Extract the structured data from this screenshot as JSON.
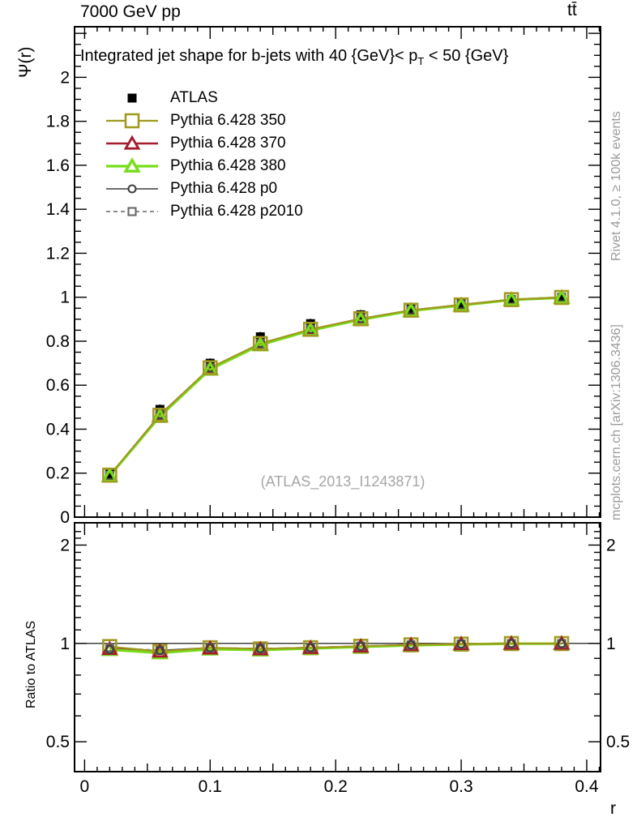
{
  "header": {
    "left": "7000 GeV pp",
    "right": "tt̄"
  },
  "panel_title": {
    "pre": "Integrated jet shape for b-jets with 40 {GeV}< p",
    "sub": "T",
    "post": " < 50 {GeV}"
  },
  "side_notes": {
    "top_right": "Rivet 4.1.0, ≥ 100k events",
    "bottom_right": "mcplots.cern.ch [arXiv:1306.3436]",
    "color": "#9b9b9b"
  },
  "watermark": {
    "text": "(ATLAS_2013_I1243871)",
    "color": "#a6a6a6"
  },
  "chart_data": {
    "type": "line",
    "title": "Integrated jet shape for b-jets with 40 {GeV}< p_T < 50 {GeV}",
    "xlabel": "r",
    "ylabel": "Ψ(r)",
    "ratio_ylabel": "Ratio to ATLAS",
    "x": [
      0.02,
      0.06,
      0.1,
      0.14,
      0.18,
      0.22,
      0.26,
      0.3,
      0.34,
      0.38
    ],
    "xlim": [
      -0.008,
      0.411
    ],
    "xticks": {
      "values": [
        0,
        0.1,
        0.2,
        0.3,
        0.4
      ],
      "labels": [
        "0",
        "0.1",
        "0.2",
        "0.3",
        "0.4"
      ]
    },
    "top_panel": {
      "ylim": [
        0,
        2.23
      ],
      "yticks": {
        "values": [
          0,
          0.2,
          0.4,
          0.6,
          0.8,
          1,
          1.2,
          1.4,
          1.6,
          1.8,
          2
        ],
        "labels": [
          "0",
          "0.2",
          "0.4",
          "0.6",
          "0.8",
          "1",
          "1.2",
          "1.4",
          "1.6",
          "1.8",
          "2"
        ]
      },
      "minor_step": 0.05
    },
    "ratio_panel": {
      "yscale": "log",
      "ylim": [
        0.405,
        2.34
      ],
      "yticks": {
        "values": [
          0.5,
          1,
          2
        ],
        "labels": [
          "0.5",
          "1",
          "2"
        ]
      },
      "minor_ticks": [
        0.6,
        0.7,
        0.8,
        0.9,
        1.1,
        1.2,
        1.3,
        1.4,
        1.5,
        1.6,
        1.7,
        1.8,
        1.9,
        2.1,
        2.2
      ],
      "refline": 1
    },
    "series": [
      {
        "name": "ATLAS",
        "kind": "data",
        "color": "#000000",
        "marker": "square-filled",
        "marker_size": 5.5,
        "line_width": 0,
        "line_style": "none",
        "values": [
          0.195,
          0.49,
          0.7,
          0.82,
          0.88,
          0.92,
          0.95,
          0.97,
          0.99,
          1.0
        ]
      },
      {
        "name": "Pythia 6.428 350",
        "kind": "mc",
        "color": "#a09a20",
        "marker": "square-open",
        "marker_size": 8,
        "line_width": 2.2,
        "line_style": "solid",
        "values": [
          0.191,
          0.463,
          0.679,
          0.789,
          0.854,
          0.902,
          0.941,
          0.965,
          0.989,
          0.999
        ],
        "ratio": [
          0.978,
          0.945,
          0.97,
          0.962,
          0.97,
          0.98,
          0.99,
          0.995,
          0.999,
          0.999
        ]
      },
      {
        "name": "Pythia 6.428 370",
        "kind": "mc",
        "color": "#a51d2d",
        "marker": "triangle-open",
        "marker_size": 7.5,
        "line_width": 2.6,
        "line_style": "solid",
        "values": [
          0.188,
          0.463,
          0.676,
          0.787,
          0.853,
          0.901,
          0.94,
          0.965,
          0.989,
          0.999
        ],
        "ratio": [
          0.962,
          0.945,
          0.966,
          0.96,
          0.969,
          0.979,
          0.989,
          0.995,
          0.999,
          0.999
        ]
      },
      {
        "name": "Pythia 6.428 380",
        "kind": "mc",
        "color": "#76dd17",
        "marker": "triangle-open",
        "marker_size": 7.5,
        "line_width": 3.2,
        "line_style": "solid",
        "values": [
          0.187,
          0.458,
          0.672,
          0.783,
          0.849,
          0.898,
          0.938,
          0.963,
          0.988,
          0.998
        ],
        "ratio": [
          0.957,
          0.935,
          0.96,
          0.955,
          0.965,
          0.976,
          0.987,
          0.993,
          0.998,
          0.998
        ]
      },
      {
        "name": "Pythia 6.428 p0",
        "kind": "mc",
        "color": "#3f3f3f",
        "marker": "circle-open",
        "marker_size": 4.5,
        "line_width": 1.6,
        "line_style": "solid",
        "values": [
          0.187,
          0.466,
          0.679,
          0.79,
          0.854,
          0.903,
          0.941,
          0.966,
          0.989,
          0.999
        ],
        "ratio": [
          0.958,
          0.952,
          0.97,
          0.964,
          0.971,
          0.981,
          0.99,
          0.996,
          0.999,
          0.999
        ]
      },
      {
        "name": "Pythia 6.428 p2010",
        "kind": "mc",
        "color": "#666666",
        "marker": "square-open",
        "marker_size": 4.5,
        "line_width": 1.6,
        "line_style": "dashed",
        "values": [
          0.19,
          0.466,
          0.679,
          0.79,
          0.854,
          0.903,
          0.941,
          0.966,
          0.989,
          0.999
        ],
        "ratio": [
          0.972,
          0.952,
          0.97,
          0.964,
          0.971,
          0.981,
          0.99,
          0.996,
          0.999,
          0.999
        ]
      }
    ],
    "legend_position": "top-left",
    "grid": false
  }
}
